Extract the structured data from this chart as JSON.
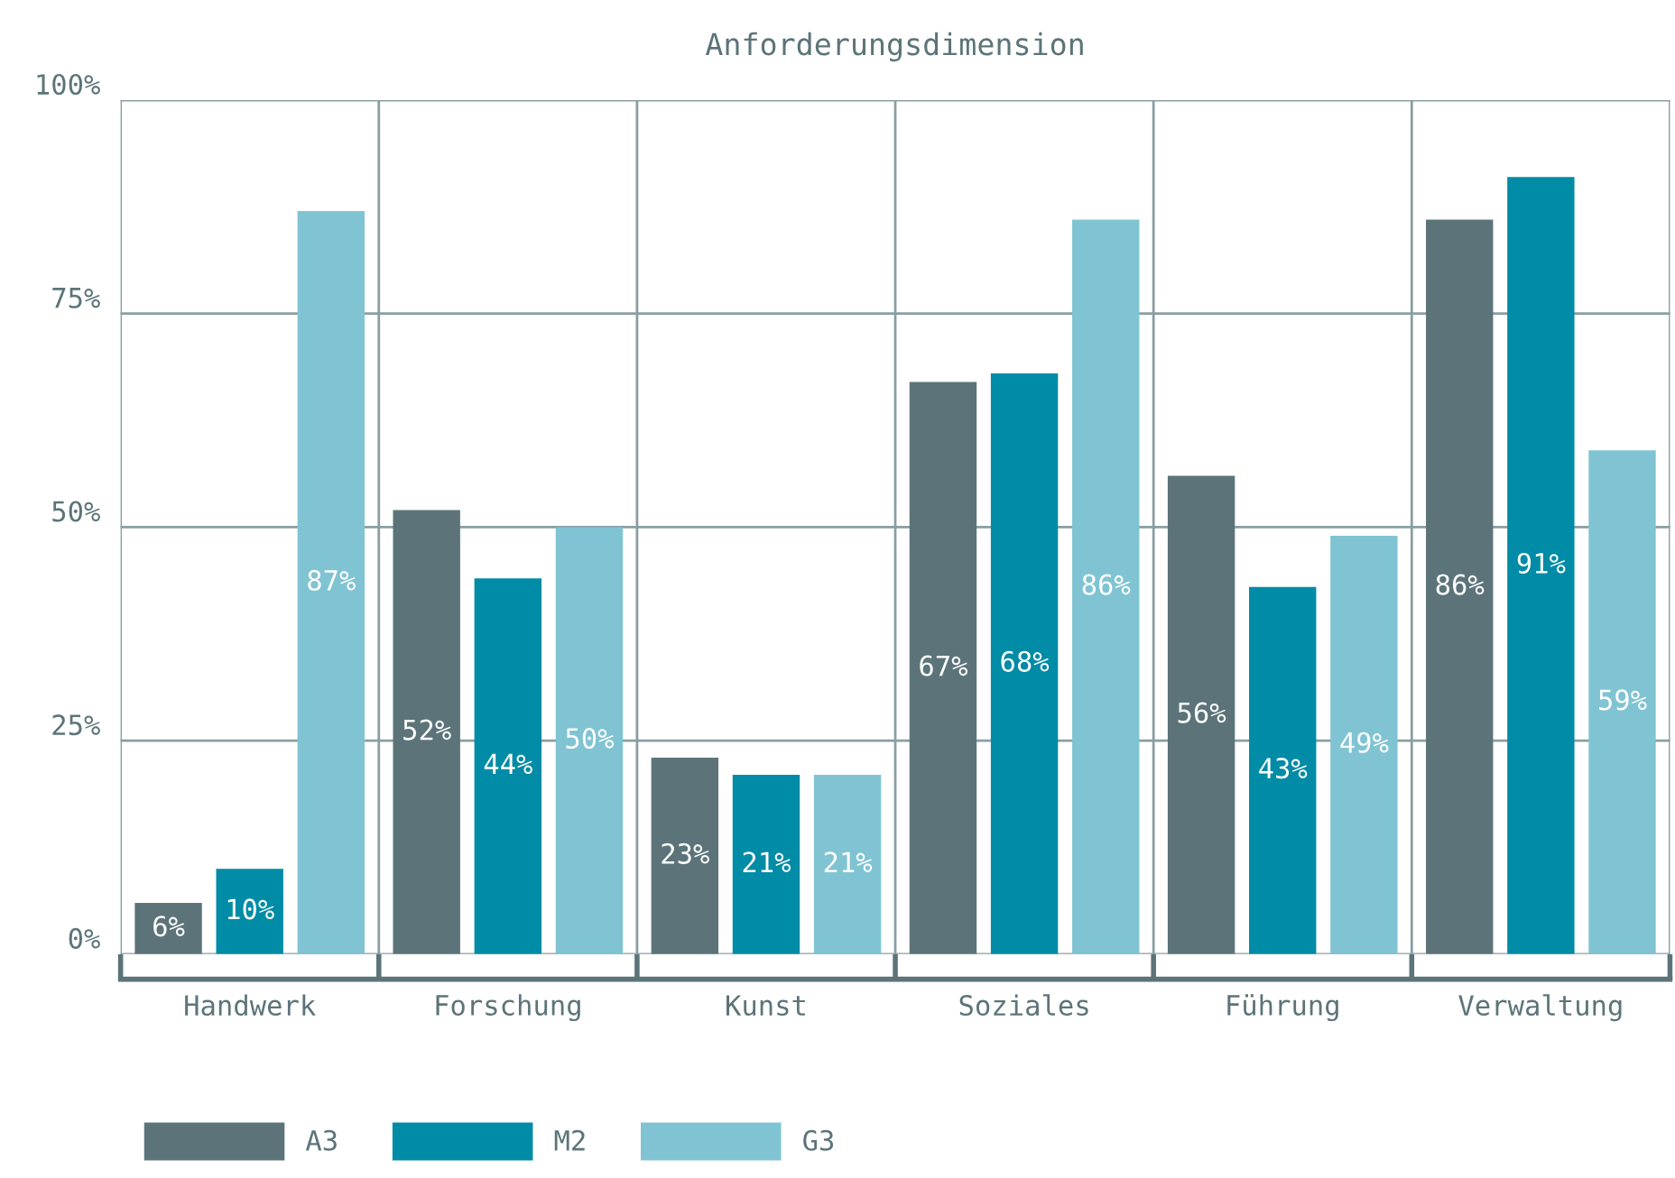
{
  "chart_data": {
    "type": "bar",
    "title": "Anforderungsdimension",
    "categories": [
      "Handwerk",
      "Forschung",
      "Kunst",
      "Soziales",
      "Führung",
      "Verwaltung"
    ],
    "series": [
      {
        "name": "A3",
        "color": "#5c7479",
        "values": [
          6,
          52,
          23,
          67,
          56,
          86
        ],
        "value_labels": [
          "6%",
          "52%",
          "23%",
          "67%",
          "56%",
          "86%"
        ]
      },
      {
        "name": "M2",
        "color": "#008ba6",
        "values": [
          10,
          44,
          21,
          68,
          43,
          91
        ],
        "value_labels": [
          "10%",
          "44%",
          "21%",
          "68%",
          "43%",
          "91%"
        ]
      },
      {
        "name": "G3",
        "color": "#80c4d3",
        "values": [
          87,
          50,
          21,
          86,
          49,
          59
        ],
        "value_labels": [
          "87%",
          "50%",
          "21%",
          "86%",
          "49%",
          "59%"
        ]
      }
    ],
    "ylim": [
      0,
      100
    ],
    "yticks": [
      {
        "value": 0,
        "label": "0%"
      },
      {
        "value": 25,
        "label": "25%"
      },
      {
        "value": 50,
        "label": "50%"
      },
      {
        "value": 75,
        "label": "75%"
      },
      {
        "value": 100,
        "label": "100%"
      }
    ],
    "grid": true,
    "legend": "bottom left"
  }
}
